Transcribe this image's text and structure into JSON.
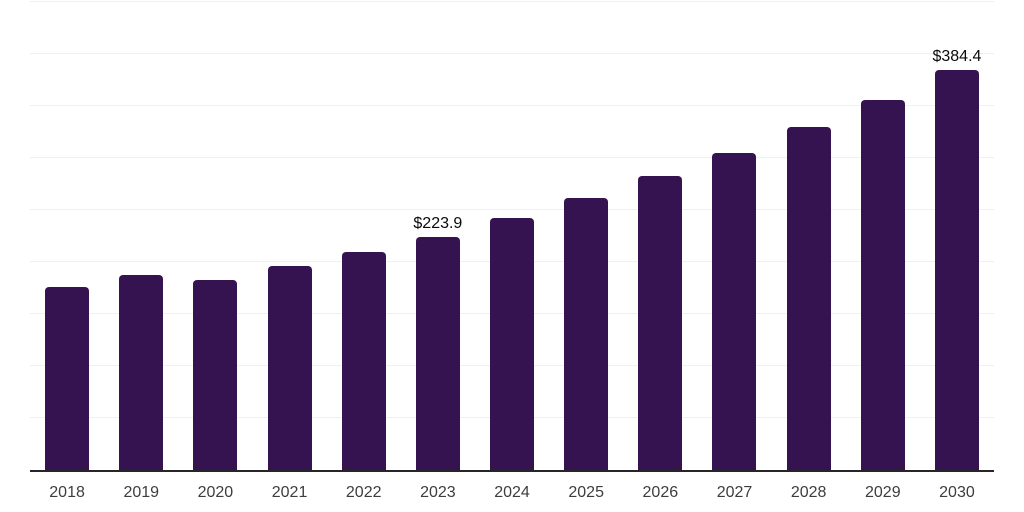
{
  "chart_data": {
    "type": "bar",
    "title": "",
    "xlabel": "",
    "ylabel": "",
    "categories": [
      "2018",
      "2019",
      "2020",
      "2021",
      "2022",
      "2023",
      "2024",
      "2025",
      "2026",
      "2027",
      "2028",
      "2029",
      "2030"
    ],
    "values": [
      176.1,
      187.4,
      182.9,
      195.8,
      209.6,
      223.9,
      241.9,
      261.3,
      282.3,
      305.0,
      329.4,
      355.9,
      384.4
    ],
    "point_labels": [
      "",
      "",
      "",
      "",
      "",
      "$223.9",
      "",
      "",
      "",
      "",
      "",
      "",
      "$384.4"
    ],
    "ylim": [
      0,
      450
    ],
    "gridline_step": 50,
    "grid": true,
    "legend_position": "none",
    "colors": {
      "bar": "#341350",
      "gridline": "#f0f0f0",
      "axis_line": "#262626",
      "tick_text": "#3d3d3d",
      "data_label_text": "#0a0a0a",
      "background": "#ffffff"
    }
  }
}
